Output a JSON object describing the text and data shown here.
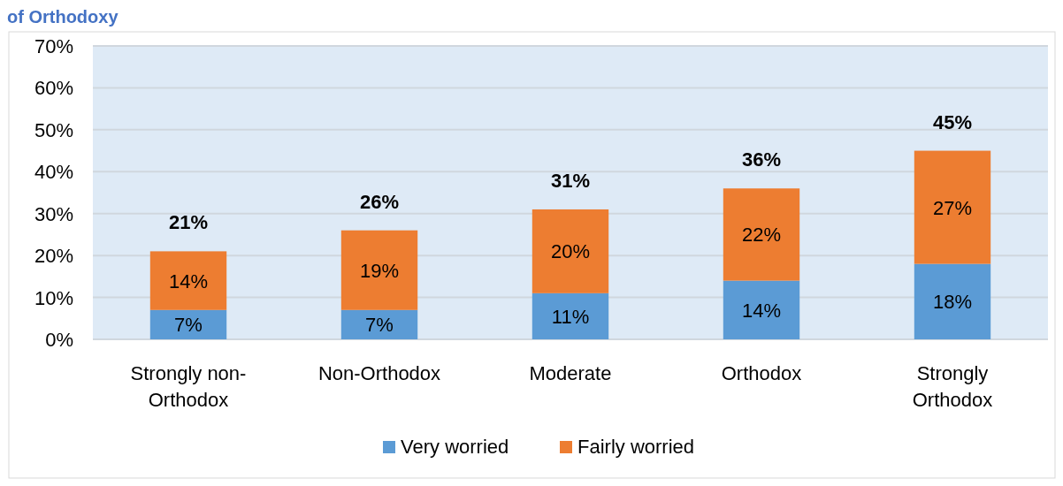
{
  "chart_data": {
    "type": "bar",
    "title": "of Orthodoxy",
    "stacked": true,
    "categories": [
      "Strongly non-Orthodox",
      "Non-Orthodox",
      "Moderate",
      "Orthodox",
      "Strongly Orthodox"
    ],
    "series": [
      {
        "name": "Very worried",
        "color": "#5b9bd5",
        "values": [
          7,
          7,
          11,
          14,
          18
        ],
        "value_labels": [
          "7%",
          "7%",
          "11%",
          "14%",
          "18%"
        ]
      },
      {
        "name": "Fairly worried",
        "color": "#ed7d31",
        "values": [
          14,
          19,
          20,
          22,
          27
        ],
        "value_labels": [
          "14%",
          "19%",
          "20%",
          "22%",
          "27%"
        ]
      }
    ],
    "totals": [
      "21%",
      "26%",
      "31%",
      "36%",
      "45%"
    ],
    "ylim": [
      0,
      70
    ],
    "yticks": [
      {
        "value": 0,
        "label": "0%"
      },
      {
        "value": 10,
        "label": "10%"
      },
      {
        "value": 20,
        "label": "20%"
      },
      {
        "value": 30,
        "label": "30%"
      },
      {
        "value": 40,
        "label": "40%"
      },
      {
        "value": 50,
        "label": "50%"
      },
      {
        "value": 60,
        "label": "60%"
      },
      {
        "value": 70,
        "label": "70%"
      }
    ],
    "grid": "y",
    "legend": "bottom"
  }
}
